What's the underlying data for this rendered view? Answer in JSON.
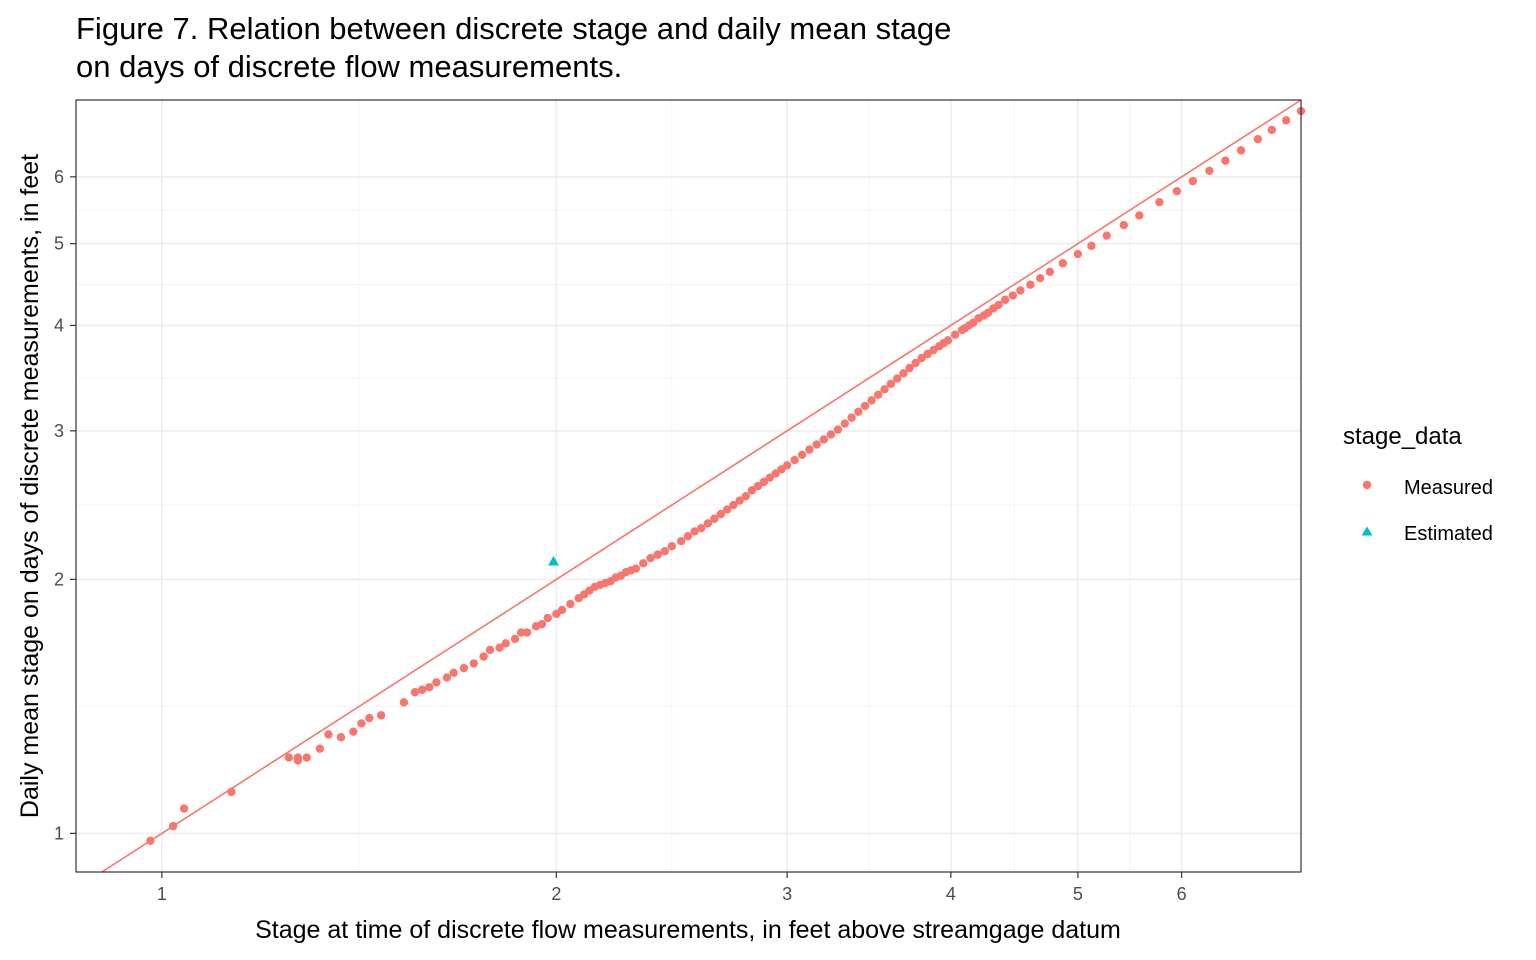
{
  "chart_data": {
    "type": "scatter",
    "title": "Figure 7. Relation between discrete stage and daily mean stage\non days of discrete flow measurements.",
    "xlabel": "Stage at time of discrete flow measurements, in feet above streamgage datum",
    "ylabel": "Daily mean stage on days of discrete measurements, in feet",
    "x_scale": "log",
    "y_scale": "log",
    "xlim": [
      0.86,
      7.4
    ],
    "ylim": [
      0.9,
      7.4
    ],
    "x_ticks": [
      1,
      2,
      3,
      4,
      5,
      6
    ],
    "y_ticks": [
      1,
      2,
      3,
      4,
      5,
      6
    ],
    "grid": true,
    "reference_line": {
      "label": "1:1 line",
      "color": "#F8766D"
    },
    "legend": {
      "title": "stage_data",
      "position": "right",
      "entries": [
        {
          "label": "Measured",
          "shape": "circle",
          "color": "#F8766D"
        },
        {
          "label": "Estimated",
          "shape": "triangle",
          "color": "#00BFC4"
        }
      ]
    },
    "series": [
      {
        "name": "Measured",
        "color": "#F8766D",
        "points": [
          [
            0.98,
            0.98
          ],
          [
            1.02,
            1.02
          ],
          [
            1.04,
            1.07
          ],
          [
            1.13,
            1.12
          ],
          [
            1.25,
            1.23
          ],
          [
            1.27,
            1.23
          ],
          [
            1.27,
            1.22
          ],
          [
            1.29,
            1.23
          ],
          [
            1.32,
            1.26
          ],
          [
            1.34,
            1.31
          ],
          [
            1.37,
            1.3
          ],
          [
            1.4,
            1.32
          ],
          [
            1.42,
            1.35
          ],
          [
            1.44,
            1.37
          ],
          [
            1.47,
            1.38
          ],
          [
            1.53,
            1.43
          ],
          [
            1.56,
            1.47
          ],
          [
            1.58,
            1.48
          ],
          [
            1.6,
            1.49
          ],
          [
            1.62,
            1.51
          ],
          [
            1.65,
            1.53
          ],
          [
            1.67,
            1.55
          ],
          [
            1.7,
            1.57
          ],
          [
            1.73,
            1.59
          ],
          [
            1.76,
            1.62
          ],
          [
            1.78,
            1.65
          ],
          [
            1.81,
            1.66
          ],
          [
            1.83,
            1.68
          ],
          [
            1.86,
            1.7
          ],
          [
            1.88,
            1.73
          ],
          [
            1.9,
            1.73
          ],
          [
            1.93,
            1.76
          ],
          [
            1.95,
            1.77
          ],
          [
            1.97,
            1.8
          ],
          [
            2.0,
            1.82
          ],
          [
            2.02,
            1.84
          ],
          [
            2.05,
            1.87
          ],
          [
            2.08,
            1.9
          ],
          [
            2.1,
            1.92
          ],
          [
            2.12,
            1.94
          ],
          [
            2.14,
            1.96
          ],
          [
            2.16,
            1.97
          ],
          [
            2.18,
            1.98
          ],
          [
            2.2,
            1.99
          ],
          [
            2.22,
            2.01
          ],
          [
            2.24,
            2.02
          ],
          [
            2.26,
            2.04
          ],
          [
            2.28,
            2.05
          ],
          [
            2.3,
            2.06
          ],
          [
            2.33,
            2.09
          ],
          [
            2.36,
            2.12
          ],
          [
            2.39,
            2.14
          ],
          [
            2.42,
            2.16
          ],
          [
            2.45,
            2.19
          ],
          [
            2.49,
            2.22
          ],
          [
            2.52,
            2.25
          ],
          [
            2.55,
            2.28
          ],
          [
            2.58,
            2.3
          ],
          [
            2.61,
            2.33
          ],
          [
            2.64,
            2.36
          ],
          [
            2.67,
            2.39
          ],
          [
            2.7,
            2.42
          ],
          [
            2.73,
            2.45
          ],
          [
            2.76,
            2.48
          ],
          [
            2.79,
            2.51
          ],
          [
            2.82,
            2.55
          ],
          [
            2.85,
            2.58
          ],
          [
            2.88,
            2.61
          ],
          [
            2.91,
            2.64
          ],
          [
            2.94,
            2.67
          ],
          [
            2.97,
            2.7
          ],
          [
            3.0,
            2.73
          ],
          [
            3.04,
            2.77
          ],
          [
            3.08,
            2.81
          ],
          [
            3.12,
            2.85
          ],
          [
            3.16,
            2.89
          ],
          [
            3.2,
            2.93
          ],
          [
            3.24,
            2.97
          ],
          [
            3.28,
            3.01
          ],
          [
            3.32,
            3.06
          ],
          [
            3.36,
            3.11
          ],
          [
            3.4,
            3.16
          ],
          [
            3.44,
            3.21
          ],
          [
            3.48,
            3.26
          ],
          [
            3.52,
            3.31
          ],
          [
            3.56,
            3.36
          ],
          [
            3.6,
            3.41
          ],
          [
            3.64,
            3.46
          ],
          [
            3.68,
            3.51
          ],
          [
            3.72,
            3.56
          ],
          [
            3.76,
            3.61
          ],
          [
            3.8,
            3.66
          ],
          [
            3.84,
            3.7
          ],
          [
            3.88,
            3.74
          ],
          [
            3.92,
            3.78
          ],
          [
            3.95,
            3.81
          ],
          [
            3.98,
            3.84
          ],
          [
            4.03,
            3.9
          ],
          [
            4.08,
            3.95
          ],
          [
            4.1,
            3.97
          ],
          [
            4.13,
            4.0
          ],
          [
            4.16,
            4.03
          ],
          [
            4.2,
            4.08
          ],
          [
            4.24,
            4.11
          ],
          [
            4.27,
            4.14
          ],
          [
            4.31,
            4.19
          ],
          [
            4.35,
            4.23
          ],
          [
            4.4,
            4.29
          ],
          [
            4.46,
            4.34
          ],
          [
            4.52,
            4.4
          ],
          [
            4.6,
            4.47
          ],
          [
            4.68,
            4.55
          ],
          [
            4.76,
            4.63
          ],
          [
            4.87,
            4.74
          ],
          [
            5.0,
            4.86
          ],
          [
            5.12,
            4.97
          ],
          [
            5.26,
            5.11
          ],
          [
            5.42,
            5.26
          ],
          [
            5.57,
            5.4
          ],
          [
            5.77,
            5.6
          ],
          [
            5.95,
            5.77
          ],
          [
            6.12,
            5.93
          ],
          [
            6.3,
            6.1
          ],
          [
            6.48,
            6.27
          ],
          [
            6.66,
            6.45
          ],
          [
            6.86,
            6.65
          ],
          [
            7.03,
            6.82
          ],
          [
            7.21,
            7.0
          ],
          [
            7.4,
            7.18
          ]
        ]
      },
      {
        "name": "Estimated",
        "color": "#00BFC4",
        "points": [
          [
            1.99,
            2.1
          ]
        ]
      }
    ]
  }
}
